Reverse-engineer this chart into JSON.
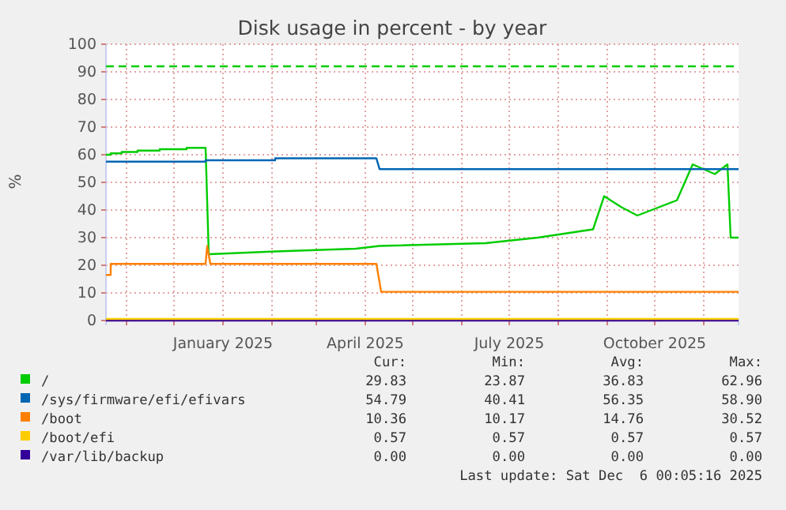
{
  "chart_data": {
    "type": "line",
    "title": "Disk usage in percent - by year",
    "ylabel": "%",
    "xlim": [
      "2024-10-19",
      "2025-11-23"
    ],
    "xticks": [
      {
        "value": "2024-11-01",
        "label": null
      },
      {
        "value": "2024-12-01",
        "label": null
      },
      {
        "value": "2025-01-01",
        "label": "January 2025"
      },
      {
        "value": "2025-02-01",
        "label": null
      },
      {
        "value": "2025-03-01",
        "label": null
      },
      {
        "value": "2025-04-01",
        "label": "April 2025"
      },
      {
        "value": "2025-05-01",
        "label": null
      },
      {
        "value": "2025-06-01",
        "label": null
      },
      {
        "value": "2025-07-01",
        "label": "July 2025"
      },
      {
        "value": "2025-08-01",
        "label": null
      },
      {
        "value": "2025-09-01",
        "label": null
      },
      {
        "value": "2025-10-01",
        "label": "October 2025"
      },
      {
        "value": "2025-11-01",
        "label": null
      }
    ],
    "ylim": [
      0,
      100
    ],
    "yticks": [
      0,
      10,
      20,
      30,
      40,
      50,
      60,
      70,
      80,
      90,
      100
    ],
    "grid": true,
    "legend": "bottom",
    "ref_lines": [
      {
        "axis": "y",
        "value": 92,
        "color": "#00cc00",
        "line_style": "dashed"
      }
    ],
    "series": [
      {
        "name": "/var/lib/backup",
        "color": "#330099",
        "x": [
          "2024-10-19",
          "2025-11-23"
        ],
        "values": [
          0,
          0
        ]
      },
      {
        "name": "/",
        "color": "#00cc00",
        "x": [
          "2024-10-19",
          "2024-10-22",
          "2024-10-22",
          "2024-10-29",
          "2024-10-29",
          "2024-11-08",
          "2024-11-08",
          "2024-11-22",
          "2024-11-22",
          "2024-12-09",
          "2024-12-09",
          "2024-12-21",
          "2024-12-23",
          "2025-02-03",
          "2025-03-26",
          "2025-04-10",
          "2025-06-16",
          "2025-07-19",
          "2025-08-23",
          "2025-08-30",
          "2025-09-10",
          "2025-09-20",
          "2025-10-15",
          "2025-10-25",
          "2025-11-08",
          "2025-11-16",
          "2025-11-18",
          "2025-11-23"
        ],
        "values": [
          60,
          60,
          60.5,
          60.5,
          61,
          61,
          61.5,
          61.5,
          62,
          62,
          62.5,
          62.5,
          24,
          25,
          26,
          27,
          28,
          30,
          33,
          45,
          41,
          38,
          43.5,
          56.5,
          53,
          56.5,
          30,
          30
        ]
      },
      {
        "name": "/sys/firmware/efi/efivars",
        "color": "#0066b3",
        "x": [
          "2024-10-19",
          "2024-12-21",
          "2024-12-21",
          "2025-02-03",
          "2025-02-03",
          "2025-04-08",
          "2025-04-10",
          "2025-11-23"
        ],
        "values": [
          57.5,
          57.5,
          58,
          58,
          58.7,
          58.7,
          54.8,
          54.8
        ]
      },
      {
        "name": "/boot",
        "color": "#ff8000",
        "x": [
          "2024-10-19",
          "2024-10-22",
          "2024-10-22",
          "2024-12-21",
          "2024-12-22",
          "2024-12-24",
          "2025-04-08",
          "2025-04-11",
          "2025-11-23"
        ],
        "values": [
          16.5,
          16.5,
          20.5,
          20.5,
          27,
          20.5,
          20.5,
          10.4,
          10.4
        ]
      },
      {
        "name": "/boot/efi",
        "color": "#ffcc00",
        "x": [
          "2024-10-19",
          "2025-11-23"
        ],
        "values": [
          0.57,
          0.57
        ]
      }
    ],
    "annotations": [
      "Cur:",
      "Min:",
      "Avg:",
      "Max:",
      "29.83",
      "23.87",
      "36.83",
      "62.96",
      "54.79",
      "40.41",
      "56.35",
      "58.90",
      "10.36",
      "10.17",
      "14.76",
      "30.52",
      "0.57",
      "0.57",
      "0.57",
      "0.57",
      "0.00",
      "0.00",
      "0.00",
      "0.00",
      "Last update: Sat Dec  6 00:05:16 2025"
    ]
  }
}
